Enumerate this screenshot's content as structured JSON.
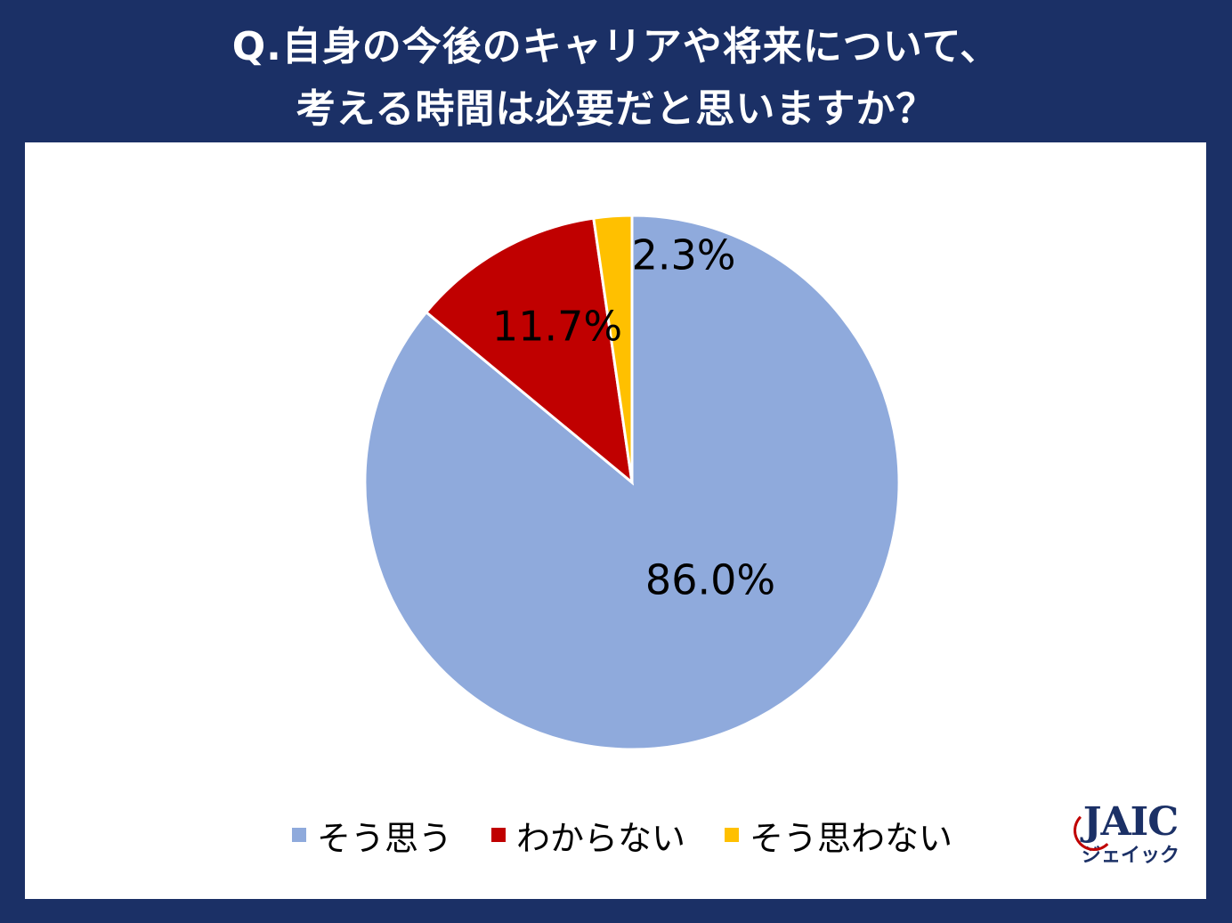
{
  "title": {
    "line1": "Q.自身の今後のキャリアや将来について、",
    "line2": "考える時間は必要だと思いますか？"
  },
  "chart_data": {
    "type": "pie",
    "categories": [
      "そう思う",
      "わからない",
      "そう思わない"
    ],
    "values": [
      86.0,
      11.7,
      2.3
    ],
    "labels": [
      "86.0%",
      "11.7%",
      "2.3%"
    ],
    "colors": [
      "#8faadc",
      "#c00000",
      "#ffc000"
    ],
    "legend": "bottom"
  },
  "logo": {
    "main": "JAIC",
    "sub": "ジェイック"
  }
}
